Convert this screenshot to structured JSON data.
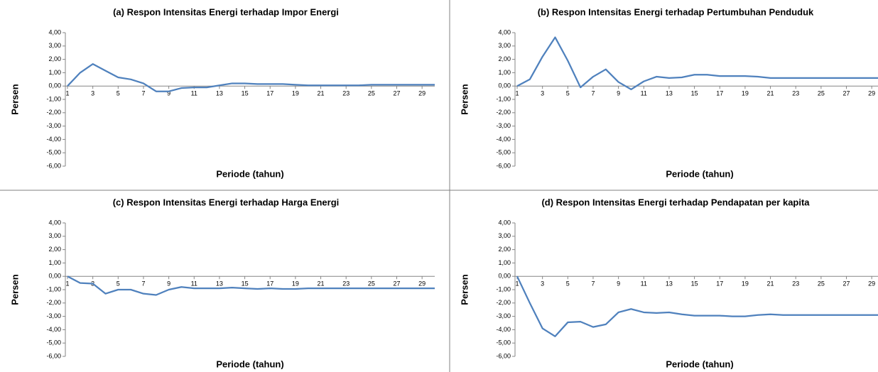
{
  "chart_data": [
    {
      "type": "line",
      "title": "(a) Respon Intensitas Energi terhadap Impor Energi",
      "x_label": "Periode (tahun)",
      "y_label": "Persen",
      "color": "#4f81bd",
      "x": [
        1,
        2,
        3,
        4,
        5,
        6,
        7,
        8,
        9,
        10,
        11,
        12,
        13,
        14,
        15,
        16,
        17,
        18,
        19,
        20,
        21,
        22,
        23,
        24,
        25,
        26,
        27,
        28,
        29,
        30
      ],
      "values": [
        0,
        1.0,
        1.65,
        1.15,
        0.65,
        0.5,
        0.2,
        -0.4,
        -0.4,
        -0.15,
        -0.1,
        -0.1,
        0.05,
        0.2,
        0.2,
        0.15,
        0.15,
        0.15,
        0.1,
        0.05,
        0.05,
        0.05,
        0.05,
        0.05,
        0.1,
        0.1,
        0.1,
        0.1,
        0.1,
        0.1
      ],
      "xlim": [
        1,
        30
      ],
      "xticks": [
        1,
        3,
        5,
        7,
        9,
        11,
        13,
        15,
        17,
        19,
        21,
        23,
        25,
        27,
        29
      ],
      "ylim": [
        -6,
        4
      ],
      "yticks": [
        {
          "value": 4,
          "label": "4,00"
        },
        {
          "value": 3,
          "label": "3,00"
        },
        {
          "value": 2,
          "label": "2,00"
        },
        {
          "value": 1,
          "label": "1,00"
        },
        {
          "value": 0,
          "label": "0,00"
        },
        {
          "value": -1,
          "label": "-1,00"
        },
        {
          "value": -2,
          "label": "-2,00"
        },
        {
          "value": -3,
          "label": "-3,00"
        },
        {
          "value": -4,
          "label": "-4,00"
        },
        {
          "value": -5,
          "label": "-5,00"
        },
        {
          "value": -6,
          "label": "-6,00"
        }
      ]
    },
    {
      "type": "line",
      "title": "(b) Respon Intensitas Energi terhadap Pertumbuhan Penduduk",
      "x_label": "Periode (tahun)",
      "y_label": "Persen",
      "color": "#4f81bd",
      "x": [
        1,
        2,
        3,
        4,
        5,
        6,
        7,
        8,
        9,
        10,
        11,
        12,
        13,
        14,
        15,
        16,
        17,
        18,
        19,
        20,
        21,
        22,
        23,
        24,
        25,
        26,
        27,
        28,
        29,
        30
      ],
      "values": [
        0,
        0.5,
        2.2,
        3.65,
        1.9,
        -0.1,
        0.7,
        1.25,
        0.3,
        -0.25,
        0.35,
        0.7,
        0.6,
        0.65,
        0.85,
        0.85,
        0.75,
        0.75,
        0.75,
        0.7,
        0.6,
        0.6,
        0.6,
        0.6,
        0.6,
        0.6,
        0.6,
        0.6,
        0.6,
        0.6
      ],
      "xlim": [
        1,
        30
      ],
      "xticks": [
        1,
        3,
        5,
        7,
        9,
        11,
        13,
        15,
        17,
        19,
        21,
        23,
        25,
        27,
        29
      ],
      "ylim": [
        -6,
        4
      ],
      "yticks": [
        {
          "value": 4,
          "label": "4,00"
        },
        {
          "value": 3,
          "label": "3,00"
        },
        {
          "value": 2,
          "label": "2,00"
        },
        {
          "value": 1,
          "label": "1,00"
        },
        {
          "value": 0,
          "label": "0,00"
        },
        {
          "value": -1,
          "label": "-1,00"
        },
        {
          "value": -2,
          "label": "-2,00"
        },
        {
          "value": -3,
          "label": "-3,00"
        },
        {
          "value": -4,
          "label": "-4,00"
        },
        {
          "value": -5,
          "label": "-5,00"
        },
        {
          "value": -6,
          "label": "-6,00"
        }
      ]
    },
    {
      "type": "line",
      "title": "(c) Respon Intensitas Energi terhadap Harga Energi",
      "x_label": "Periode (tahun)",
      "y_label": "Persen",
      "color": "#4f81bd",
      "x": [
        1,
        2,
        3,
        4,
        5,
        6,
        7,
        8,
        9,
        10,
        11,
        12,
        13,
        14,
        15,
        16,
        17,
        18,
        19,
        20,
        21,
        22,
        23,
        24,
        25,
        26,
        27,
        28,
        29,
        30
      ],
      "values": [
        0,
        -0.5,
        -0.55,
        -1.3,
        -1.0,
        -1.0,
        -1.3,
        -1.4,
        -1.0,
        -0.8,
        -0.9,
        -0.9,
        -0.9,
        -0.85,
        -0.9,
        -0.95,
        -0.9,
        -0.95,
        -0.95,
        -0.9,
        -0.9,
        -0.9,
        -0.9,
        -0.9,
        -0.9,
        -0.9,
        -0.9,
        -0.9,
        -0.9,
        -0.9
      ],
      "xlim": [
        1,
        30
      ],
      "xticks": [
        1,
        3,
        5,
        7,
        9,
        11,
        13,
        15,
        17,
        19,
        21,
        23,
        25,
        27,
        29
      ],
      "ylim": [
        -6,
        4
      ],
      "yticks": [
        {
          "value": 4,
          "label": "4,00"
        },
        {
          "value": 3,
          "label": "3,00"
        },
        {
          "value": 2,
          "label": "2,00"
        },
        {
          "value": 1,
          "label": "1,00"
        },
        {
          "value": 0,
          "label": "0,00"
        },
        {
          "value": -1,
          "label": "-1,00"
        },
        {
          "value": -2,
          "label": "-2,00"
        },
        {
          "value": -3,
          "label": "-3,00"
        },
        {
          "value": -4,
          "label": "-4,00"
        },
        {
          "value": -5,
          "label": "-5,00"
        },
        {
          "value": -6,
          "label": "-6,00"
        }
      ]
    },
    {
      "type": "line",
      "title": "(d) Respon Intensitas Energi terhadap Pendapatan per kapita",
      "x_label": "Periode (tahun)",
      "y_label": "Persen",
      "color": "#4f81bd",
      "x": [
        1,
        2,
        3,
        4,
        5,
        6,
        7,
        8,
        9,
        10,
        11,
        12,
        13,
        14,
        15,
        16,
        17,
        18,
        19,
        20,
        21,
        22,
        23,
        24,
        25,
        26,
        27,
        28,
        29,
        30
      ],
      "values": [
        0,
        -2.0,
        -3.9,
        -4.5,
        -3.45,
        -3.4,
        -3.8,
        -3.6,
        -2.7,
        -2.45,
        -2.7,
        -2.75,
        -2.7,
        -2.85,
        -2.95,
        -2.95,
        -2.95,
        -3.0,
        -3.0,
        -2.9,
        -2.85,
        -2.9,
        -2.9,
        -2.9,
        -2.9,
        -2.9,
        -2.9,
        -2.9,
        -2.9,
        -2.9
      ],
      "xlim": [
        1,
        30
      ],
      "xticks": [
        1,
        3,
        5,
        7,
        9,
        11,
        13,
        15,
        17,
        19,
        21,
        23,
        25,
        27,
        29
      ],
      "ylim": [
        -6,
        4
      ],
      "yticks": [
        {
          "value": 4,
          "label": "4,00"
        },
        {
          "value": 3,
          "label": "3,00"
        },
        {
          "value": 2,
          "label": "2,00"
        },
        {
          "value": 1,
          "label": "1,00"
        },
        {
          "value": 0,
          "label": "0,00"
        },
        {
          "value": -1,
          "label": "-1,00"
        },
        {
          "value": -2,
          "label": "-2,00"
        },
        {
          "value": -3,
          "label": "-3,00"
        },
        {
          "value": -4,
          "label": "-4,00"
        },
        {
          "value": -5,
          "label": "-5,00"
        },
        {
          "value": -6,
          "label": "-6,00"
        }
      ]
    }
  ]
}
